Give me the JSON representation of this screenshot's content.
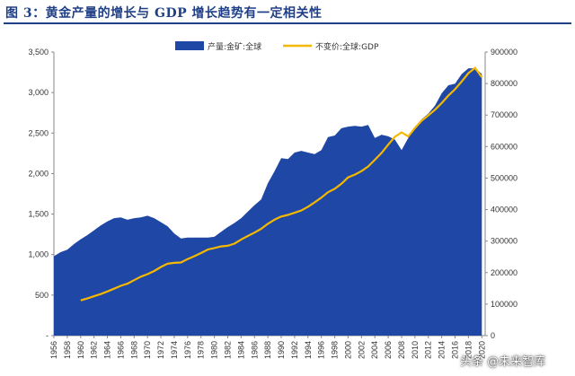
{
  "title": "图 3：黄金产量的增长与 GDP 增长趋势有一定相关性",
  "watermark": "头条 @未来智库",
  "colors": {
    "title": "#1f3f86",
    "area": "#1f47a5",
    "line": "#f5b800"
  },
  "chart_data": {
    "type": "area",
    "legend_position": "top",
    "grid": false,
    "x_ticks": [
      "1956",
      "1958",
      "1960",
      "1962",
      "1964",
      "1966",
      "1968",
      "1970",
      "1972",
      "1974",
      "1976",
      "1978",
      "1980",
      "1982",
      "1984",
      "1986",
      "1988",
      "1990",
      "1992",
      "1994",
      "1996",
      "1998",
      "2000",
      "2002",
      "2004",
      "2006",
      "2008",
      "2010",
      "2012",
      "2014",
      "2016",
      "2018",
      "2020"
    ],
    "y_left": {
      "lim": [
        0,
        3500
      ],
      "ticks": [
        0,
        500,
        1000,
        1500,
        2000,
        2500,
        3000,
        3500
      ],
      "tick_labels": [
        "-",
        "500",
        "1,000",
        "1,500",
        "2,000",
        "2,500",
        "3,000",
        "3,500"
      ]
    },
    "y_right": {
      "lim": [
        0,
        900000
      ],
      "ticks": [
        0,
        100000,
        200000,
        300000,
        400000,
        500000,
        600000,
        700000,
        800000,
        900000
      ],
      "tick_labels": [
        "0",
        "100000",
        "200000",
        "300000",
        "400000",
        "500000",
        "600000",
        "700000",
        "800000",
        "900000"
      ]
    },
    "series": [
      {
        "name": "产量:金矿:全球",
        "type": "area",
        "axis": "left",
        "x": [
          1956,
          1957,
          1958,
          1959,
          1960,
          1961,
          1962,
          1963,
          1964,
          1965,
          1966,
          1967,
          1968,
          1969,
          1970,
          1971,
          1972,
          1973,
          1974,
          1975,
          1976,
          1977,
          1978,
          1979,
          1980,
          1981,
          1982,
          1983,
          1984,
          1985,
          1986,
          1987,
          1988,
          1989,
          1990,
          1991,
          1992,
          1993,
          1994,
          1995,
          1996,
          1997,
          1998,
          1999,
          2000,
          2001,
          2002,
          2003,
          2004,
          2005,
          2006,
          2007,
          2008,
          2009,
          2010,
          2011,
          2012,
          2013,
          2014,
          2015,
          2016,
          2017,
          2018,
          2019,
          2020
        ],
        "values": [
          980,
          1030,
          1060,
          1130,
          1190,
          1240,
          1300,
          1360,
          1410,
          1450,
          1460,
          1430,
          1450,
          1460,
          1480,
          1450,
          1400,
          1350,
          1260,
          1200,
          1210,
          1210,
          1210,
          1210,
          1220,
          1280,
          1340,
          1390,
          1450,
          1530,
          1610,
          1680,
          1880,
          2030,
          2190,
          2180,
          2260,
          2280,
          2260,
          2240,
          2290,
          2450,
          2470,
          2560,
          2580,
          2590,
          2580,
          2600,
          2440,
          2480,
          2460,
          2420,
          2290,
          2440,
          2580,
          2670,
          2740,
          2840,
          2990,
          3090,
          3110,
          3230,
          3300,
          3300,
          3230
        ]
      },
      {
        "name": "不变价:全球:GDP",
        "type": "line",
        "axis": "right",
        "x": [
          1960,
          1961,
          1962,
          1963,
          1964,
          1965,
          1966,
          1967,
          1968,
          1969,
          1970,
          1971,
          1972,
          1973,
          1974,
          1975,
          1976,
          1977,
          1978,
          1979,
          1980,
          1981,
          1982,
          1983,
          1984,
          1985,
          1986,
          1987,
          1988,
          1989,
          1990,
          1991,
          1992,
          1993,
          1994,
          1995,
          1996,
          1997,
          1998,
          1999,
          2000,
          2001,
          2002,
          2003,
          2004,
          2005,
          2006,
          2007,
          2008,
          2009,
          2010,
          2011,
          2012,
          2013,
          2014,
          2015,
          2016,
          2017,
          2018,
          2019,
          2020
        ],
        "values": [
          112000,
          118000,
          125000,
          132000,
          140000,
          149000,
          158000,
          165000,
          176000,
          187000,
          195000,
          205000,
          218000,
          228000,
          231000,
          232000,
          243000,
          252000,
          262000,
          273000,
          278000,
          283000,
          285000,
          292000,
          305000,
          316000,
          327000,
          339000,
          355000,
          368000,
          378000,
          383000,
          390000,
          397000,
          409000,
          423000,
          438000,
          455000,
          466000,
          482000,
          502000,
          511000,
          522000,
          537000,
          558000,
          580000,
          606000,
          631000,
          645000,
          632000,
          659000,
          682000,
          699000,
          717000,
          738000,
          762000,
          782000,
          807000,
          833000,
          850000,
          820000
        ]
      }
    ]
  }
}
